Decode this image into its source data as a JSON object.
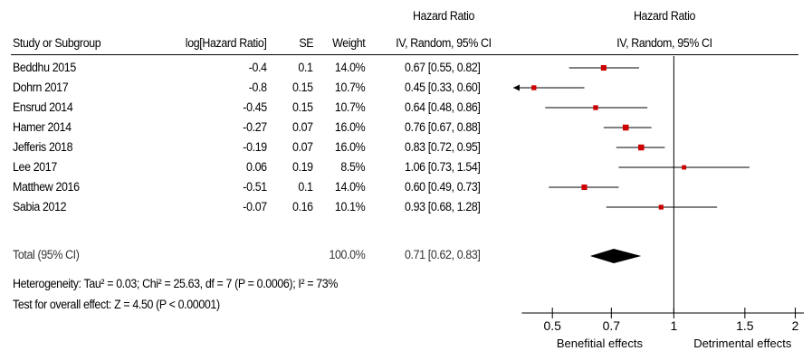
{
  "header": {
    "hr_title_left": "Hazard Ratio",
    "hr_title_right": "Hazard Ratio",
    "study_col": "Study or Subgroup",
    "loghr_col": "log[Hazard Ratio]",
    "se_col": "SE",
    "weight_col": "Weight",
    "method_left": "IV, Random, 95% CI",
    "method_right": "IV, Random, 95% CI"
  },
  "rows": [
    {
      "study": "Beddhu 2015",
      "loghr": "-0.4",
      "se": "0.1",
      "weight": "14.0%",
      "ci": "0.67 [0.55, 0.82]"
    },
    {
      "study": "Dohrn 2017",
      "loghr": "-0.8",
      "se": "0.15",
      "weight": "10.7%",
      "ci": "0.45 [0.33, 0.60]"
    },
    {
      "study": "Ensrud 2014",
      "loghr": "-0.45",
      "se": "0.15",
      "weight": "10.7%",
      "ci": "0.64 [0.48, 0.86]"
    },
    {
      "study": "Hamer 2014",
      "loghr": "-0.27",
      "se": "0.07",
      "weight": "16.0%",
      "ci": "0.76 [0.67, 0.88]"
    },
    {
      "study": "Jefferis 2018",
      "loghr": "-0.19",
      "se": "0.07",
      "weight": "16.0%",
      "ci": "0.83 [0.72, 0.95]"
    },
    {
      "study": "Lee 2017",
      "loghr": "0.06",
      "se": "0.19",
      "weight": "8.5%",
      "ci": "1.06 [0.73, 1.54]"
    },
    {
      "study": "Matthew 2016",
      "loghr": "-0.51",
      "se": "0.1",
      "weight": "14.0%",
      "ci": "0.60 [0.49, 0.73]"
    },
    {
      "study": "Sabia 2012",
      "loghr": "-0.07",
      "se": "0.16",
      "weight": "10.1%",
      "ci": "0.93 [0.68, 1.28]"
    }
  ],
  "total": {
    "label": "Total (95% CI)",
    "weight": "100.0%",
    "ci": "0.71 [0.62, 0.83]"
  },
  "footer": {
    "heterogeneity": "Heterogeneity: Tau² = 0.03; Chi² = 25.63, df = 7 (P = 0.0006); I² = 73%",
    "overall": "Test for overall effect: Z = 4.50 (P < 0.00001)",
    "left_effect": "Benefitial effects",
    "right_effect": "Detrimental effects"
  },
  "chart_data": {
    "type": "forest",
    "scale": "log",
    "xlim": [
      0.4,
      2.2
    ],
    "null_line": 1,
    "ticks": [
      0.5,
      0.7,
      1,
      1.5,
      2
    ],
    "tick_labels": [
      "0.5",
      "0.7",
      "1",
      "1.5",
      "2"
    ],
    "marker_color": "#cc0000",
    "studies": [
      {
        "name": "Beddhu 2015",
        "hr": 0.67,
        "lo": 0.55,
        "hi": 0.82,
        "weight": 14.0
      },
      {
        "name": "Dohrn 2017",
        "hr": 0.45,
        "lo": 0.33,
        "hi": 0.6,
        "weight": 10.7
      },
      {
        "name": "Ensrud 2014",
        "hr": 0.64,
        "lo": 0.48,
        "hi": 0.86,
        "weight": 10.7
      },
      {
        "name": "Hamer 2014",
        "hr": 0.76,
        "lo": 0.67,
        "hi": 0.88,
        "weight": 16.0
      },
      {
        "name": "Jefferis 2018",
        "hr": 0.83,
        "lo": 0.72,
        "hi": 0.95,
        "weight": 16.0
      },
      {
        "name": "Lee 2017",
        "hr": 1.06,
        "lo": 0.73,
        "hi": 1.54,
        "weight": 8.5
      },
      {
        "name": "Matthew 2016",
        "hr": 0.6,
        "lo": 0.49,
        "hi": 0.73,
        "weight": 14.0
      },
      {
        "name": "Sabia 2012",
        "hr": 0.93,
        "lo": 0.68,
        "hi": 1.28,
        "weight": 10.1
      }
    ],
    "pooled": {
      "hr": 0.71,
      "lo": 0.62,
      "hi": 0.83
    }
  }
}
